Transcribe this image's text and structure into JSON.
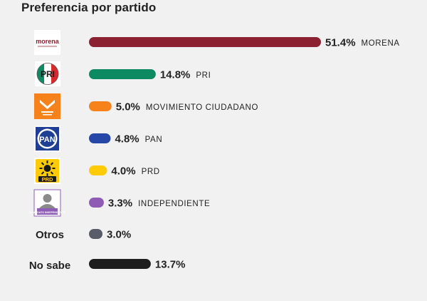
{
  "chart_data": {
    "type": "bar",
    "orientation": "horizontal",
    "title": "Preferencia por partido",
    "xlim": [
      0,
      51.4
    ],
    "grid": false,
    "legend": "none",
    "rows": [
      {
        "label": "morena",
        "name": "MORENA",
        "value": 51.4,
        "value_label": "51.4%",
        "color": "#8b2131",
        "icon": "morena-logo-icon"
      },
      {
        "label": "PRI",
        "name": "PRI",
        "value": 14.8,
        "value_label": "14.8%",
        "color": "#0e8a63",
        "icon": "pri-logo-icon"
      },
      {
        "label": "MOVIMIENTO CIUDADANO",
        "name": "MOVIMIENTO CIUDADANO",
        "value": 5.0,
        "value_label": "5.0%",
        "color": "#f7821b",
        "icon": "mc-logo-icon"
      },
      {
        "label": "PAN",
        "name": "PAN",
        "value": 4.8,
        "value_label": "4.8%",
        "color": "#2747a8",
        "icon": "pan-logo-icon"
      },
      {
        "label": "PRD",
        "name": "PRD",
        "value": 4.0,
        "value_label": "4.0%",
        "color": "#ffcb05",
        "icon": "prd-logo-icon"
      },
      {
        "label": "CANDIDATO INDEPENDIENTE",
        "name": "INDEPENDIENTE",
        "value": 3.3,
        "value_label": "3.3%",
        "color": "#8e5bb5",
        "icon": "independiente-logo-icon"
      },
      {
        "label": "Otros",
        "name": "",
        "value": 3.0,
        "value_label": "3.0%",
        "color": "#585c68",
        "icon": ""
      },
      {
        "label": "No sabe",
        "name": "",
        "value": 13.7,
        "value_label": "13.7%",
        "color": "#1d1d1d",
        "icon": ""
      }
    ]
  }
}
